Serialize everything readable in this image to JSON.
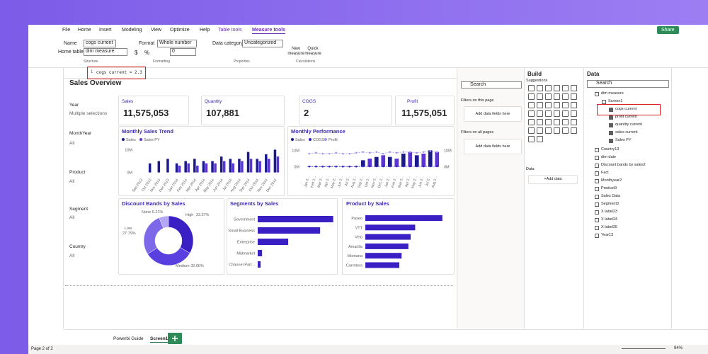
{
  "ribbon": {
    "tabs": [
      "File",
      "Home",
      "Insert",
      "Modeling",
      "View",
      "Optimize",
      "Help",
      "Table tools",
      "Measure tools"
    ],
    "share": "Share",
    "name_label": "Name",
    "name_value": "cogs current",
    "home_table_label": "Home table",
    "home_table_value": "dim measure",
    "format_label": "Format",
    "format_value": "Whole number",
    "currency": "$",
    "percent": "%",
    "decimals": "0",
    "data_category_label": "Data category",
    "data_category_value": "Uncategorized",
    "new_measure": "New measure",
    "quick_measure": "Quick measure",
    "groups": [
      "Structure",
      "Formatting",
      "Properties",
      "Calculations"
    ]
  },
  "formula": {
    "line": "1",
    "text": "cogs current = 2.3"
  },
  "report": {
    "title": "Sales Overview",
    "slicers": [
      {
        "label": "Year",
        "value": "Multiple selections"
      },
      {
        "label": "MonthYear",
        "value": "All"
      },
      {
        "label": "Product",
        "value": "All"
      },
      {
        "label": "Segment",
        "value": "All"
      },
      {
        "label": "Country",
        "value": "All"
      }
    ],
    "cards": [
      {
        "label": "Sales",
        "value": "11,575,053"
      },
      {
        "label": "Quantity",
        "value": "107,881"
      },
      {
        "label": "COGS",
        "value": "2"
      },
      {
        "label": "Profit",
        "value": "11,575,051"
      }
    ],
    "sales_trend": {
      "title": "Monthly Sales Trend",
      "categories": [
        "Sep 2013",
        "Oct 2013",
        "Nov 2013",
        "Dec 2013",
        "Jan 2014",
        "Feb 2014",
        "Mar 2014",
        "Apr 2014",
        "May 2014",
        "Jun 2014",
        "Jul 2014",
        "Aug 2014",
        "Sep 2014",
        "Oct 2014",
        "Nov 2014",
        "Dec 2014"
      ],
      "series": [
        {
          "name": "Sales",
          "color": "#1b1a8a",
          "values": [
            null,
            4,
            5,
            6,
            4,
            5,
            6,
            5,
            5,
            7,
            6,
            6,
            9,
            6,
            8,
            10
          ]
        },
        {
          "name": "Sales PY",
          "color": "#5b34d6",
          "values": [
            null,
            null,
            null,
            null,
            3,
            4,
            3,
            4,
            4,
            5,
            4,
            5,
            6,
            5,
            6,
            7
          ]
        }
      ],
      "ylim": [
        -2,
        12
      ],
      "yticks": [
        {
          "value": 10,
          "label": "10M"
        },
        {
          "value": 0,
          "label": "0M"
        }
      ]
    },
    "performance": {
      "title": "Monthly Performance",
      "categories": [
        "Jan 2...",
        "Feb 2...",
        "Mar 2...",
        "Apr 2...",
        "May 2...",
        "Jun 2...",
        "Jul 2...",
        "Aug 2...",
        "Sep 2...",
        "Oct 2...",
        "Nov 2...",
        "Dec 2...",
        "Jan 2...",
        "Feb 2...",
        "Mar 2...",
        "Apr 2...",
        "May 2...",
        "Jun 2...",
        "Jul 2...",
        "Aug 2..."
      ],
      "series": [
        {
          "name": "Sales",
          "color": "#1b1a8a",
          "values": [
            0.2,
            0.2,
            0.3,
            0.3,
            0.2,
            0.3,
            0.3,
            0.4,
            4,
            5,
            6,
            7,
            6,
            5,
            8,
            9,
            7,
            8,
            10,
            9
          ]
        },
        {
          "name": "COGS",
          "color": "#2f24b8",
          "axis": "y2",
          "values": [
            0.2,
            0.2,
            0.2,
            0.2,
            0.2,
            0.2,
            0.2,
            0.2,
            0.3,
            0.3,
            0.3,
            0.3,
            0.3,
            0.3,
            0.3,
            0.3,
            0.3,
            0.3,
            0.3,
            0.3
          ]
        },
        {
          "name": "Profit",
          "color": "#a397ee",
          "axis": "y2",
          "values": [
            8,
            8.5,
            8,
            8,
            8.5,
            8,
            8,
            8.5,
            9,
            8.5,
            9,
            8,
            9,
            8.5,
            9,
            9,
            8.5,
            9,
            9.5,
            9
          ]
        }
      ],
      "ylim": [
        -4,
        14
      ],
      "yticks": [
        {
          "value": 10,
          "label": "10M"
        },
        {
          "value": 0,
          "label": "0M"
        }
      ],
      "y2lim": [
        -4,
        14
      ],
      "y2ticks": [
        {
          "value": 10,
          "label": "10M"
        },
        {
          "value": 0,
          "label": "0M"
        }
      ]
    },
    "discount_bands": {
      "title": "Discount Bands by Sales",
      "categories": [
        "None",
        "High",
        "Medium",
        "Low"
      ],
      "values": [
        6.21,
        33.37,
        32.66,
        27.79
      ],
      "value_labels": [
        "6.21%",
        "33.37%",
        "32.66%",
        "27.79%"
      ],
      "colors": [
        "#b3a6f3",
        "#3a1fc4",
        "#5a3fe0",
        "#7d68ea"
      ]
    },
    "segments": {
      "title": "Segments by Sales",
      "categories": [
        "Government",
        "Small Business",
        "Enterprise",
        "Midmarket",
        "Channel Part..."
      ],
      "values": [
        5.2,
        4.3,
        2.1,
        0.3,
        0.2
      ],
      "color": "#3a1fc4"
    },
    "products": {
      "title": "Product by Sales",
      "categories": [
        "Paseo",
        "VTT",
        "Velo",
        "Amarilla",
        "Montana",
        "Carretera"
      ],
      "values": [
        3.4,
        2.2,
        2.0,
        1.9,
        1.6,
        1.5
      ],
      "color": "#3a1fc4"
    }
  },
  "filters": {
    "search": "Search",
    "this_page": "Filters on this page",
    "this_page_drop": "Add data fields here",
    "all_pages": "Filters on all pages",
    "all_pages_drop": "Add data fields here"
  },
  "build": {
    "title": "Build",
    "suggestions": "Suggestions",
    "data_label": "Data",
    "add_data": "+Add data"
  },
  "data_pane": {
    "title": "Data",
    "search": "Search",
    "tree": [
      "dim measure",
      "Screen1",
      "cogs current",
      "profit current",
      "quantity current",
      "sales current",
      "Sales PY",
      "Country13",
      "dim date",
      "Discount bands by sales2",
      "Fact",
      "Monthyear2",
      "Product9",
      "Sales Data",
      "Segment3",
      "X label23",
      "X label24",
      "X label25",
      "Year13"
    ]
  },
  "pages": [
    "Powerbi Guide",
    "Screen1"
  ],
  "status": {
    "page": "Page 2 of 2",
    "zoom": "94%"
  }
}
